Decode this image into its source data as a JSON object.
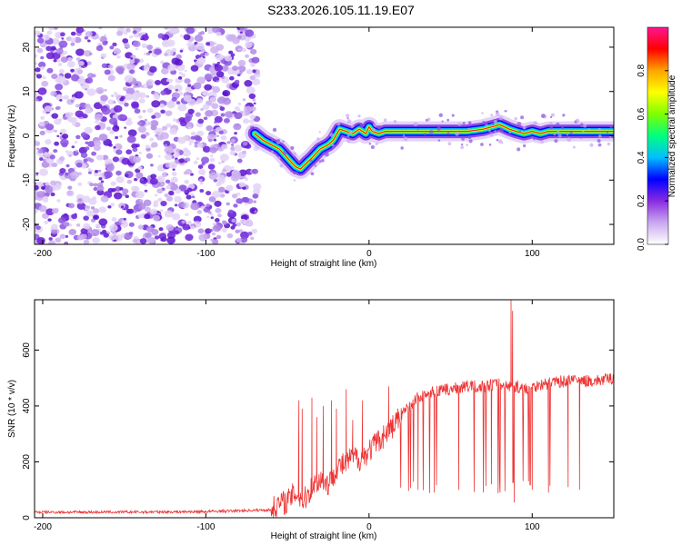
{
  "title": "S233.2026.105.11.19.E07",
  "chart_data": [
    {
      "type": "heatmap",
      "name": "spectrogram",
      "xlabel": "Height of straight line (km)",
      "ylabel": "Frequency (Hz)",
      "xlim": [
        -205,
        150
      ],
      "ylim": [
        -24.5,
        24.5
      ],
      "xticks": [
        -200,
        -100,
        0,
        100
      ],
      "xtick_labels": [
        "-200",
        "-100",
        "0",
        "100"
      ],
      "yticks": [
        -20,
        -10,
        0,
        10,
        20
      ],
      "ytick_labels": [
        "-20",
        "-10",
        "0",
        "10",
        "20"
      ],
      "noise_region_x": [
        -205,
        -68
      ],
      "signal_ridge": {
        "x": [
          -70,
          -65,
          -60,
          -55,
          -50,
          -45,
          -42,
          -38,
          -35,
          -30,
          -25,
          -22,
          -18,
          -14,
          -10,
          -6,
          -2,
          0,
          2,
          6,
          10,
          15,
          20,
          30,
          40,
          50,
          60,
          70,
          80,
          83,
          86,
          90,
          95,
          100,
          105,
          110,
          115,
          120,
          125,
          130,
          140,
          150
        ],
        "freq": [
          0.5,
          -1,
          -2,
          -3,
          -5,
          -7,
          -7.5,
          -6,
          -5,
          -3,
          -2,
          -1,
          1.5,
          1,
          0.5,
          1.5,
          0.5,
          2,
          1,
          0.5,
          1,
          1,
          1,
          1,
          1,
          1,
          1,
          1.5,
          2.5,
          2,
          1.5,
          1,
          0.5,
          1,
          0.5,
          1,
          1,
          1,
          1,
          1,
          1,
          1
        ]
      },
      "colorbar": {
        "label": "Normalized spectral amplitude",
        "range": [
          0,
          1
        ],
        "ticks": [
          0,
          0.2,
          0.4,
          0.6,
          0.8
        ],
        "tick_labels": [
          "0.0",
          "0.2",
          "0.4",
          "0.6",
          "0.8"
        ],
        "colors": [
          "#ffffff",
          "#c9a8f0",
          "#8a2be2",
          "#0000ff",
          "#00bfff",
          "#00ff7f",
          "#7fff00",
          "#ffff00",
          "#ffa500",
          "#ff0000",
          "#ff1493"
        ]
      }
    },
    {
      "type": "line",
      "name": "snr",
      "xlabel": "Height of straight line (km)",
      "ylabel": "SNR (10 * v/v)",
      "xlim": [
        -205,
        150
      ],
      "ylim": [
        0,
        780
      ],
      "xticks": [
        -200,
        -100,
        0,
        100
      ],
      "xtick_labels": [
        "-200",
        "-100",
        "0",
        "100"
      ],
      "yticks": [
        0,
        200,
        400,
        600
      ],
      "ytick_labels": [
        "0",
        "200",
        "400",
        "600"
      ],
      "color": "#ee3333",
      "baseline": {
        "x": [
          -205,
          -150,
          -100,
          -60,
          -55,
          -50,
          -45,
          -40,
          -35,
          -30,
          -25,
          -20,
          -15,
          -10,
          -5,
          0,
          5,
          10,
          15,
          20,
          25,
          30,
          40,
          50,
          60,
          70,
          80,
          85,
          90,
          95,
          100,
          110,
          120,
          130,
          140,
          150
        ],
        "snr": [
          20,
          20,
          22,
          28,
          50,
          60,
          90,
          60,
          110,
          140,
          120,
          180,
          190,
          220,
          210,
          240,
          270,
          300,
          330,
          370,
          400,
          430,
          450,
          460,
          470,
          470,
          480,
          470,
          470,
          460,
          470,
          480,
          490,
          490,
          490,
          500
        ]
      },
      "spikes": [
        {
          "x": -43,
          "snr": 420
        },
        {
          "x": -41,
          "snr": 390
        },
        {
          "x": -35,
          "snr": 430
        },
        {
          "x": -32,
          "snr": 360
        },
        {
          "x": -28,
          "snr": 400
        },
        {
          "x": -23,
          "snr": 420
        },
        {
          "x": -20,
          "snr": 390
        },
        {
          "x": -14,
          "snr": 460
        },
        {
          "x": -10,
          "snr": 350
        },
        {
          "x": -4,
          "snr": 420
        },
        {
          "x": 4,
          "snr": 300
        },
        {
          "x": 12,
          "snr": 470
        },
        {
          "x": 30,
          "snr": 100
        },
        {
          "x": 40,
          "snr": 90
        },
        {
          "x": 55,
          "snr": 100
        },
        {
          "x": 75,
          "snr": 120
        },
        {
          "x": 87,
          "snr": 780
        },
        {
          "x": 88,
          "snr": 740
        },
        {
          "x": 89,
          "snr": 55
        },
        {
          "x": 100,
          "snr": 100
        },
        {
          "x": 110,
          "snr": 90
        },
        {
          "x": 122,
          "snr": 110
        },
        {
          "x": 129,
          "snr": 100
        }
      ],
      "dropouts_x_range": [
        15,
        130
      ]
    }
  ]
}
